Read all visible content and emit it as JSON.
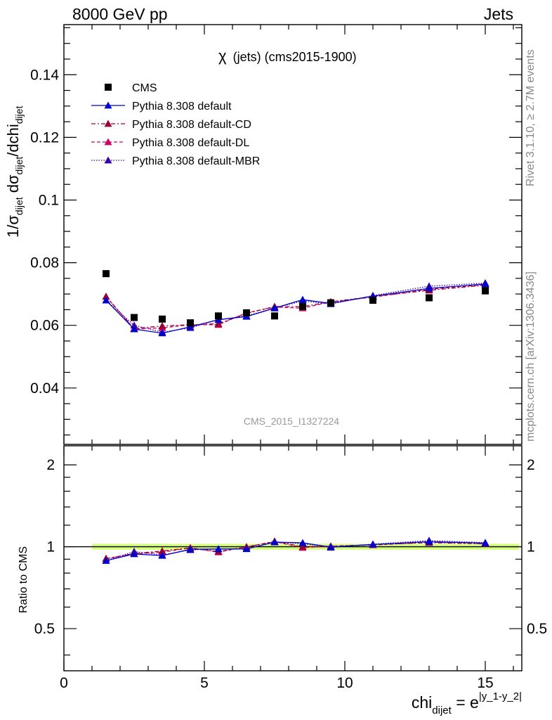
{
  "header": {
    "left": "8000 GeV pp",
    "right": "Jets"
  },
  "plot_title": {
    "symbol": "χ",
    "text": "(jets) (cms2015-1900)"
  },
  "y_label": {
    "p1": "1/σ",
    "s1": "dijet",
    "p2": " dσ",
    "s2": "dijet",
    "p3": "/dchi",
    "s3": "dijet"
  },
  "ratio_label": "Ratio to CMS",
  "x_label": {
    "base": "chi",
    "sub": "dijet",
    "eq": " = e",
    "sup": "|y_1-y_2|"
  },
  "side_text": {
    "top": "Rivet 3.1.10, ≥ 2.7M events",
    "bottom": "mcplots.cern.ch [arXiv:1306.3436]"
  },
  "watermark": "CMS_2015_I1327224",
  "colors": {
    "cms": "#000000",
    "default": "#0000cc",
    "cd": "#990033",
    "dl": "#cc0066",
    "mbr": "#3300aa",
    "band": "#ccff66"
  },
  "chart_data": {
    "type": "line",
    "x": [
      1.5,
      2.5,
      3.5,
      4.5,
      5.5,
      6.5,
      7.5,
      8.5,
      9.5,
      11.0,
      13.0,
      15.0
    ],
    "xlim": [
      0,
      16.3
    ],
    "ylim": [
      0.022,
      0.156
    ],
    "yticks": [
      "0.04",
      "0.06",
      "0.08",
      "0.1",
      "0.12",
      "0.14"
    ],
    "xticks": [
      "0",
      "5",
      "10",
      "15"
    ],
    "ratio_ylim": [
      0.35,
      2.35
    ],
    "ratio_yticks": [
      "0.5",
      "1",
      "2"
    ],
    "series": [
      {
        "name": "CMS",
        "style": "square",
        "color": "#000000",
        "values": [
          0.0765,
          0.0625,
          0.062,
          0.0608,
          0.063,
          0.064,
          0.063,
          0.066,
          0.0672,
          0.068,
          0.0688,
          0.071
        ]
      },
      {
        "name": "Pythia 8.308 default",
        "style": "solid",
        "color": "#0000cc",
        "values": [
          0.068,
          0.0588,
          0.0575,
          0.0595,
          0.0618,
          0.0628,
          0.0655,
          0.0682,
          0.067,
          0.0693,
          0.0718,
          0.0732
        ]
      },
      {
        "name": "Pythia 8.308 default-CD",
        "style": "dashdot",
        "color": "#990033",
        "values": [
          0.0692,
          0.059,
          0.0598,
          0.0602,
          0.0605,
          0.0638,
          0.066,
          0.066,
          0.0675,
          0.0692,
          0.0712,
          0.0728
        ]
      },
      {
        "name": "Pythia 8.308 default-DL",
        "style": "dashed",
        "color": "#cc0066",
        "values": [
          0.0692,
          0.0588,
          0.0592,
          0.0602,
          0.0602,
          0.064,
          0.0658,
          0.0655,
          0.0675,
          0.069,
          0.0715,
          0.073
        ]
      },
      {
        "name": "Pythia 8.308 default-MBR",
        "style": "dotted",
        "color": "#3300aa",
        "values": [
          0.068,
          0.06,
          0.0578,
          0.0592,
          0.0618,
          0.063,
          0.0655,
          0.0678,
          0.0668,
          0.0695,
          0.0725,
          0.0735
        ]
      }
    ]
  }
}
